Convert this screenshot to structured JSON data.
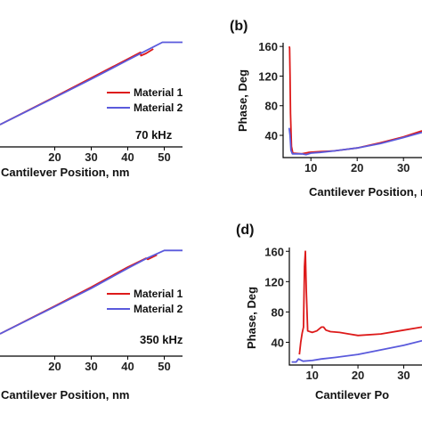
{
  "colors": {
    "material_1": "#dd1a1a",
    "material_2": "#5a5adc",
    "axis": "#000000"
  },
  "chart_data": [
    {
      "id": "a",
      "type": "line",
      "panel_label": "",
      "annotation": "70 kHz",
      "xlabel": "Cantilever Position, nm",
      "ylabel": "",
      "xlim": [
        5,
        55
      ],
      "x_ticks": [
        "20",
        "30",
        "40",
        "50"
      ],
      "ylim": [
        0,
        100
      ],
      "legend": {
        "placement": "center-right",
        "entries": [
          "Material 1",
          "Material 2"
        ]
      },
      "series": [
        {
          "name": "Material 1",
          "color_key": "material_1",
          "x": [
            5,
            20,
            30,
            40,
            43.5,
            43.6,
            45,
            47
          ],
          "y": [
            20,
            45,
            62,
            79,
            85,
            82,
            84,
            88
          ]
        },
        {
          "name": "Material 2",
          "color_key": "material_2",
          "x": [
            5,
            20,
            30,
            40,
            45,
            49.5,
            55
          ],
          "y": [
            20,
            44.5,
            61,
            78,
            86.5,
            94,
            94
          ]
        }
      ]
    },
    {
      "id": "b",
      "type": "line",
      "panel_label": "(b)",
      "annotation": "",
      "xlabel": "Cantilever Position, nm",
      "ylabel": "Phase, Deg",
      "xlim": [
        4,
        34
      ],
      "x_ticks": [
        "10",
        "20",
        "30"
      ],
      "ylim": [
        10,
        165
      ],
      "y_ticks": [
        "40",
        "80",
        "120",
        "160"
      ],
      "series": [
        {
          "name": "Material 1",
          "color_key": "material_1",
          "x": [
            5.3,
            5.4,
            5.5,
            5.6,
            5.8,
            6.1,
            6.2,
            8,
            9.5,
            12,
            15,
            20,
            25,
            30,
            34
          ],
          "y": [
            160,
            158,
            120,
            70,
            25,
            16,
            16,
            15,
            17,
            18,
            19,
            23,
            30,
            38,
            46
          ]
        },
        {
          "name": "Material 2",
          "color_key": "material_2",
          "x": [
            5.3,
            5.5,
            5.7,
            6,
            8,
            9,
            10,
            12,
            15,
            20,
            25,
            30,
            34
          ],
          "y": [
            50,
            40,
            20,
            15,
            15,
            14,
            16,
            17,
            19,
            23,
            29,
            37,
            44
          ]
        }
      ]
    },
    {
      "id": "c",
      "type": "line",
      "panel_label": "",
      "annotation": "350 kHz",
      "xlabel": "Cantilever Position, nm",
      "ylabel": "",
      "xlim": [
        5,
        55
      ],
      "x_ticks": [
        "20",
        "30",
        "40",
        "50"
      ],
      "ylim": [
        0,
        100
      ],
      "legend": {
        "placement": "center-right",
        "entries": [
          "Material 1",
          "Material 2"
        ]
      },
      "series": [
        {
          "name": "Material 1",
          "color_key": "material_1",
          "x": [
            5,
            20,
            30,
            40,
            45,
            45.5,
            48
          ],
          "y": [
            20,
            45,
            62,
            80,
            88,
            87,
            91
          ]
        },
        {
          "name": "Material 2",
          "color_key": "material_2",
          "x": [
            5,
            20,
            30,
            40,
            45,
            50,
            55
          ],
          "y": [
            20,
            44.5,
            61,
            79,
            87.5,
            95,
            95
          ]
        }
      ]
    },
    {
      "id": "d",
      "type": "line",
      "panel_label": "(d)",
      "annotation": "",
      "xlabel": "Cantilever Po",
      "ylabel": "Phase, Deg",
      "xlim": [
        5,
        34
      ],
      "x_ticks": [
        "10",
        "20",
        "30"
      ],
      "ylim": [
        10,
        165
      ],
      "y_ticks": [
        "40",
        "80",
        "120",
        "160"
      ],
      "series": [
        {
          "name": "Material 1",
          "color_key": "material_1",
          "x": [
            7.2,
            7.5,
            7.8,
            8.1,
            8.3,
            8.5,
            8.7,
            9,
            10,
            11,
            12,
            12.5,
            13,
            14,
            16,
            18,
            20,
            25,
            30,
            34
          ],
          "y": [
            24,
            40,
            52,
            60,
            140,
            160,
            110,
            55,
            53,
            55,
            60,
            60,
            56,
            54,
            53,
            51,
            49,
            51,
            56,
            60
          ]
        },
        {
          "name": "Material 2",
          "color_key": "material_2",
          "x": [
            5.5,
            6.5,
            7,
            8,
            10,
            12,
            15,
            20,
            25,
            30,
            34
          ],
          "y": [
            14,
            14,
            18,
            15,
            16,
            18,
            20,
            24,
            30,
            36,
            42
          ]
        }
      ]
    }
  ]
}
